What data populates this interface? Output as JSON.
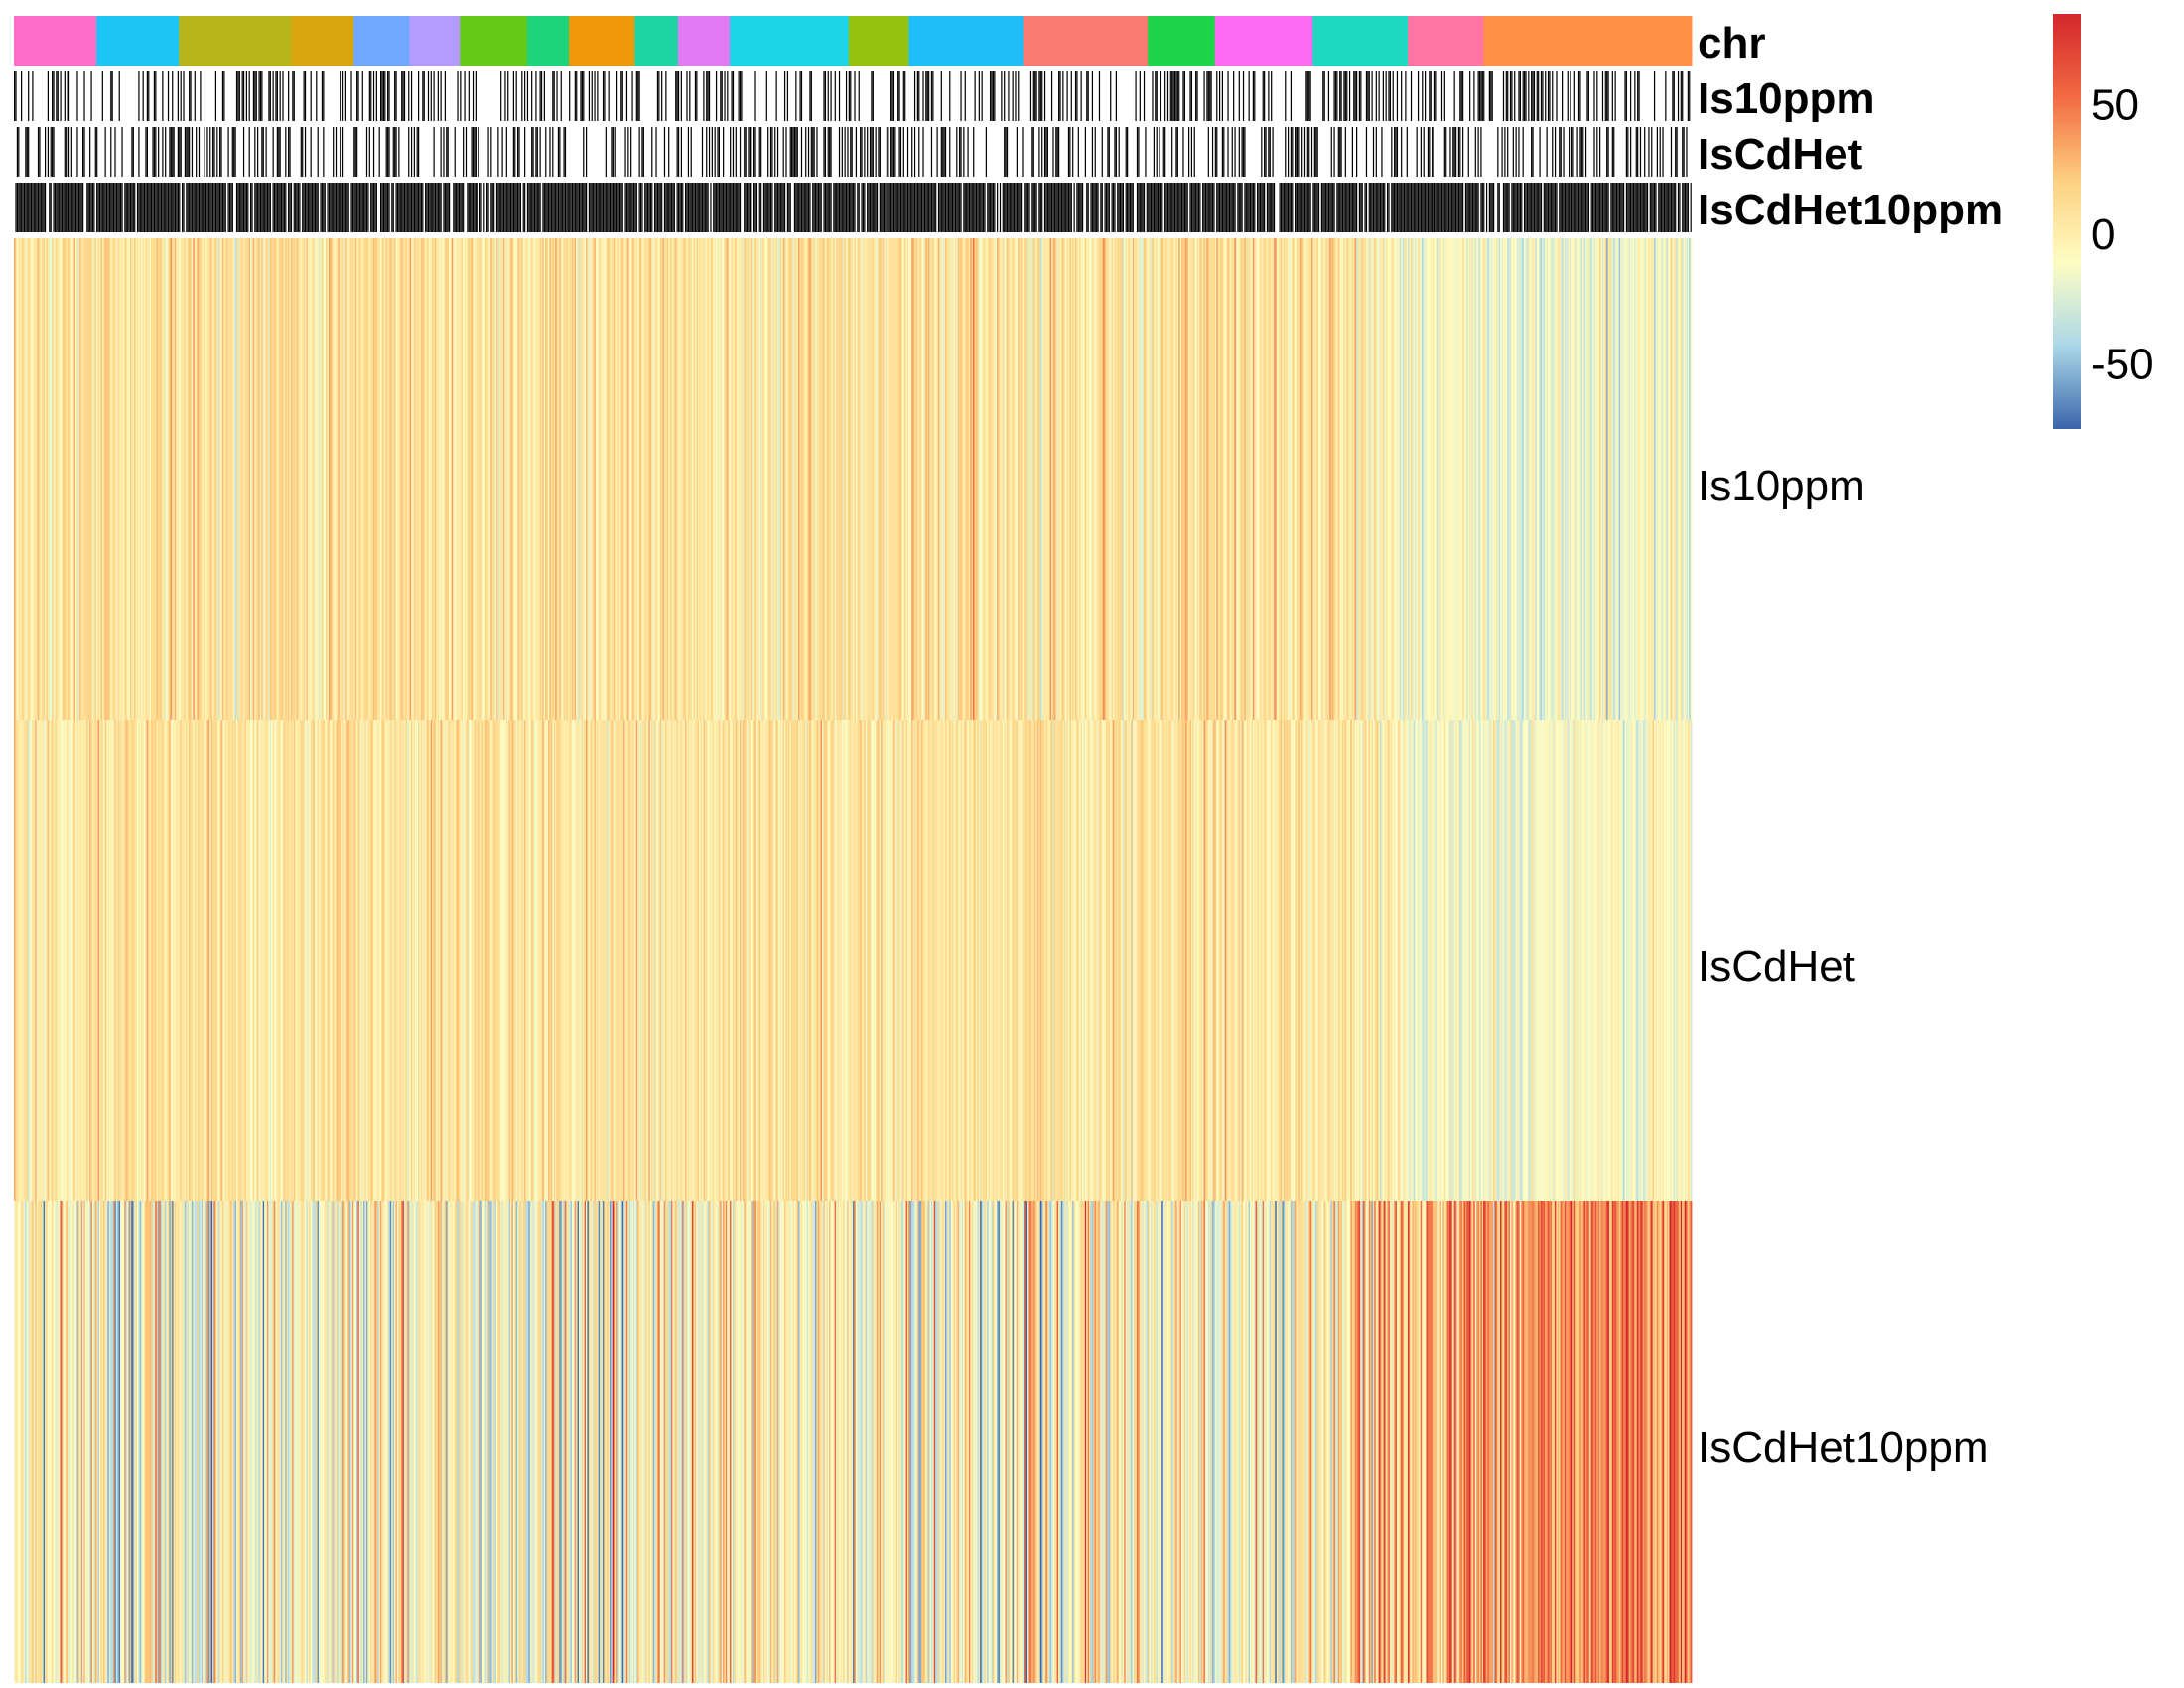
{
  "chart_data": {
    "type": "heatmap",
    "title": "",
    "xlabel": "",
    "ylabel": "",
    "n_columns": 1200,
    "rows": [
      {
        "name": "Is10ppm",
        "mean_value": 8,
        "noise": 14
      },
      {
        "name": "IsCdHet",
        "mean_value": 6,
        "noise": 12
      },
      {
        "name": "IsCdHet10ppm",
        "mean_value": -6,
        "noise": 28
      }
    ],
    "row_trend_right_segment": [
      {
        "name": "Is10ppm",
        "mean_value": -15
      },
      {
        "name": "IsCdHet",
        "mean_value": -12
      },
      {
        "name": "IsCdHet10ppm",
        "mean_value": 40
      }
    ],
    "annotations": [
      {
        "name": "chr",
        "kind": "categorical"
      },
      {
        "name": "Is10ppm",
        "kind": "binary",
        "fraction_black": 0.35
      },
      {
        "name": "IsCdHet",
        "kind": "binary",
        "fraction_black": 0.35
      },
      {
        "name": "IsCdHet10ppm",
        "kind": "binary",
        "fraction_black": 0.88
      }
    ],
    "chr_segments": [
      {
        "width": 59,
        "color": "#FF6DC8"
      },
      {
        "width": 59,
        "color": "#1DC6F5"
      },
      {
        "width": 80,
        "color": "#B5B419"
      },
      {
        "width": 45,
        "color": "#D8A50F"
      },
      {
        "width": 40,
        "color": "#6FA8FF"
      },
      {
        "width": 36,
        "color": "#B49BFF"
      },
      {
        "width": 48,
        "color": "#66C918"
      },
      {
        "width": 30,
        "color": "#1ED37C"
      },
      {
        "width": 47,
        "color": "#F0980C"
      },
      {
        "width": 31,
        "color": "#1ED6A3"
      },
      {
        "width": 37,
        "color": "#E27AF4"
      },
      {
        "width": 85,
        "color": "#1DD3E6"
      },
      {
        "width": 43,
        "color": "#97C10F"
      },
      {
        "width": 82,
        "color": "#1FBEF7"
      },
      {
        "width": 89,
        "color": "#FA7B73"
      },
      {
        "width": 48,
        "color": "#1ED44B"
      },
      {
        "width": 70,
        "color": "#FC6BF2"
      },
      {
        "width": 68,
        "color": "#1ED8C2"
      },
      {
        "width": 54,
        "color": "#FF74A3"
      },
      {
        "width": 149,
        "color": "#FF9147"
      }
    ],
    "colorbar": {
      "min": -75,
      "max": 85,
      "ticks": [
        50,
        0,
        -50
      ],
      "tick_labels": [
        "50",
        "0",
        "-50"
      ],
      "colors": [
        "#3A64AB",
        "#ABD8E8",
        "#FEFDC3",
        "#FDD081",
        "#F16A42",
        "#D3262C"
      ]
    }
  }
}
